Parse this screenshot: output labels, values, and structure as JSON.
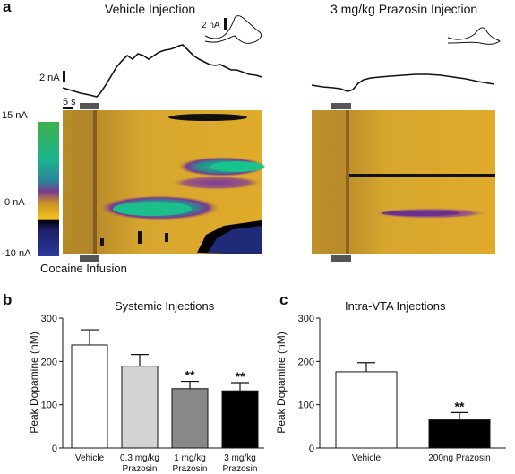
{
  "panel_a": {
    "letter": "a",
    "left_title": "Vehicle Injection",
    "right_title": "3 mg/kg Prazosin Injection",
    "inset_scale": "2 nA",
    "trace_scale": "2 nA",
    "time_scale": "5 s",
    "colorbar_labels": [
      "15 nA",
      "0 nA",
      "-10 nA"
    ],
    "infusion_label": "Cocaine Infusion"
  },
  "chart_data": [
    {
      "panel": "b",
      "type": "bar",
      "title": "Systemic Injections",
      "ylabel": "Peak Dopamine (nM)",
      "ylim": [
        0,
        300
      ],
      "yticks": [
        0,
        100,
        200,
        300
      ],
      "categories": [
        [
          "Vehicle"
        ],
        [
          "0.3 mg/kg",
          "Prazosin"
        ],
        [
          "1 mg/kg",
          "Prazosin"
        ],
        [
          "3 mg/kg",
          "Prazosin"
        ]
      ],
      "values": [
        238,
        189,
        137,
        132
      ],
      "errors": [
        35,
        27,
        17,
        19
      ],
      "fills": [
        "#ffffff",
        "#d3d3d3",
        "#888888",
        "#000000"
      ],
      "significance": [
        "",
        "",
        "**",
        "**"
      ]
    },
    {
      "panel": "c",
      "type": "bar",
      "title": "Intra-VTA Injections",
      "ylabel": "Peak Dopamine (nM)",
      "ylim": [
        0,
        300
      ],
      "yticks": [
        0,
        100,
        200,
        300
      ],
      "categories": [
        [
          "Vehicle"
        ],
        [
          "200ng Prazosin"
        ]
      ],
      "values": [
        176,
        65
      ],
      "errors": [
        21,
        17
      ],
      "fills": [
        "#ffffff",
        "#000000"
      ],
      "significance": [
        "",
        "**"
      ]
    }
  ]
}
